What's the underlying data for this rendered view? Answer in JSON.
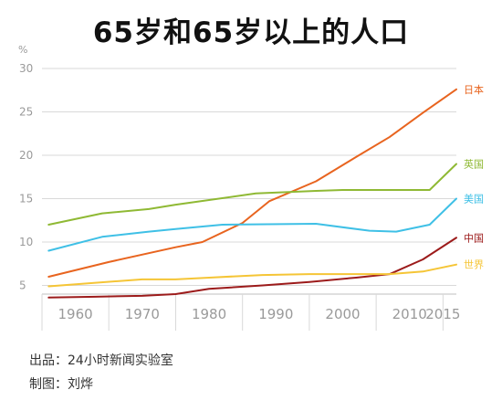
{
  "title": "65岁和65岁以上的人口",
  "footer": {
    "source": "出品：24小时新闻实验室",
    "credit": "制图：刘烨"
  },
  "colors": {
    "axis_text": "#9a9a9a",
    "grid": "#d9d9d9",
    "axis_line": "#bfbfbf"
  },
  "chart_data": {
    "type": "line",
    "title": "65岁和65岁以上的人口",
    "ylabel": "%",
    "xlabel": "",
    "xlim": [
      1955,
      2017
    ],
    "ylim": [
      4,
      30
    ],
    "y_ticks": [
      5,
      10,
      15,
      20,
      25,
      30
    ],
    "x_ticks": [
      1960,
      1970,
      1980,
      1990,
      2000,
      2010,
      2015
    ],
    "grid": true,
    "legend": "right, labels at line ends",
    "series": [
      {
        "name": "日本",
        "color": "#e8641f",
        "x": [
          1956,
          1965,
          1975,
          1979,
          1985,
          1989,
          1996,
          2002,
          2007,
          2012,
          2017
        ],
        "y": [
          6.0,
          7.7,
          9.4,
          10.0,
          12.2,
          14.7,
          17.0,
          19.8,
          22.1,
          24.9,
          27.6
        ]
      },
      {
        "name": "英国",
        "color": "#8fb934",
        "x": [
          1956,
          1964,
          1971,
          1975,
          1987,
          1996,
          2000,
          2008,
          2013,
          2017
        ],
        "y": [
          12.0,
          13.3,
          13.8,
          14.3,
          15.6,
          15.9,
          16.0,
          16.0,
          16.0,
          19.0
        ]
      },
      {
        "name": "美国",
        "color": "#3fc0e6",
        "x": [
          1956,
          1964,
          1971,
          1975,
          1982,
          1996,
          2004,
          2008,
          2013,
          2017
        ],
        "y": [
          9.0,
          10.6,
          11.2,
          11.5,
          12.0,
          12.1,
          11.3,
          11.2,
          12.0,
          15.0
        ]
      },
      {
        "name": "中国",
        "color": "#9c1b1b",
        "x": [
          1956,
          1963,
          1970,
          1975,
          1980,
          1988,
          1995,
          2002,
          2007,
          2012,
          2017
        ],
        "y": [
          3.6,
          3.7,
          3.8,
          4.0,
          4.6,
          5.0,
          5.4,
          5.9,
          6.3,
          8.0,
          10.5
        ]
      },
      {
        "name": "世界",
        "color": "#f5c536",
        "x": [
          1956,
          1963,
          1970,
          1975,
          1980,
          1988,
          1995,
          2002,
          2007,
          2012,
          2017
        ],
        "y": [
          4.9,
          5.3,
          5.7,
          5.7,
          5.9,
          6.2,
          6.3,
          6.3,
          6.3,
          6.6,
          7.4
        ]
      }
    ]
  }
}
